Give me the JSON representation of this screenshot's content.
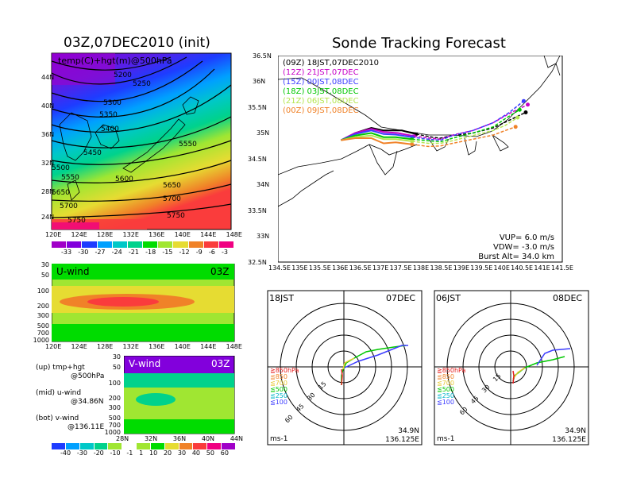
{
  "left_title": "03Z,07DEC2010 (init)",
  "right_title": "Sonde Tracking Forecast",
  "map_panel": {
    "label": "temp(C)+hgt(m)@500hPa",
    "x_ticks": [
      "120E",
      "124E",
      "128E",
      "132E",
      "136E",
      "140E",
      "144E",
      "148E"
    ],
    "y_ticks": [
      "44N",
      "40N",
      "36N",
      "32N",
      "28N",
      "24N"
    ],
    "contour_labels": [
      "5200",
      "5250",
      "5300",
      "5350",
      "5400",
      "5450",
      "5500",
      "5550",
      "5550",
      "5600",
      "5650",
      "5650",
      "5700",
      "5700",
      "5750",
      "5750"
    ]
  },
  "temp_colorbar": {
    "labels": [
      "-33",
      "-30",
      "-27",
      "-24",
      "-21",
      "-18",
      "-15",
      "-12",
      "-9",
      "-6",
      "-3"
    ],
    "colors": [
      "#a000c8",
      "#8200dc",
      "#1e3cff",
      "#00a0ff",
      "#00c8c8",
      "#00d28c",
      "#00dc00",
      "#a0e632",
      "#e6dc32",
      "#f08228",
      "#fa3c3c",
      "#f00082"
    ]
  },
  "uwind_panel": {
    "label": "U-wind",
    "time": "03Z",
    "y_ticks": [
      "30",
      "50",
      "100",
      "200",
      "300",
      "500",
      "700",
      "1000"
    ],
    "x_ticks": [
      "120E",
      "124E",
      "128E",
      "132E",
      "136E",
      "140E",
      "144E",
      "148E"
    ]
  },
  "vwind_panel": {
    "label": "V-wind",
    "time": "03Z",
    "y_ticks": [
      "30",
      "50",
      "100",
      "200",
      "300",
      "500",
      "700",
      "1000"
    ],
    "x_ticks": [
      "28N",
      "32N",
      "36N",
      "40N",
      "44N"
    ]
  },
  "wind_colorbar": {
    "labels": [
      "-40",
      "-30",
      "-20",
      "-10",
      "-1",
      "1",
      "10",
      "20",
      "30",
      "40",
      "50",
      "60"
    ],
    "colors": [
      "#1e3cff",
      "#00a0ff",
      "#00c8c8",
      "#00d28c",
      "#a0e632",
      "#ffffff",
      "#a0e632",
      "#00dc00",
      "#e6dc32",
      "#f08228",
      "#fa3c3c",
      "#f00082",
      "#a000c8"
    ]
  },
  "notes": [
    {
      "line1": "(up)  tmp+hgt",
      "line2": "@500hPa"
    },
    {
      "line1": "(mid)  u-wind",
      "line2": "@34.86N"
    },
    {
      "line1": "(bot)  v-wind",
      "line2": "@136.11E"
    }
  ],
  "tracking_panel": {
    "x_ticks": [
      "134.5E",
      "135E",
      "135.5E",
      "136E",
      "136.5E",
      "137E",
      "137.5E",
      "138E",
      "138.5E",
      "139E",
      "139.5E",
      "140E",
      "140.5E",
      "141E",
      "141.5E"
    ],
    "y_ticks": [
      "36.5N",
      "36N",
      "35.5N",
      "35N",
      "34.5N",
      "34N",
      "33.5N",
      "33N",
      "32.5N"
    ],
    "params": [
      "VUP=  6.0  m/s",
      "VDW= -3.0  m/s",
      "Burst Alt=  34.0  km"
    ]
  },
  "chart_data": {
    "type": "line",
    "title": "Sonde Tracking Forecast",
    "xlim": [
      134.5,
      141.5
    ],
    "ylim": [
      32.5,
      36.5
    ],
    "series": [
      {
        "name": "(09Z)  18JST,07DEC2010",
        "color": "#000000",
        "x": [
          136.05,
          136.4,
          136.8,
          137.1,
          137.55,
          137.9,
          138.3,
          138.5,
          138.8,
          139.3,
          139.8,
          140.2,
          140.6
        ],
        "y": [
          34.86,
          35.0,
          35.1,
          35.05,
          35.05,
          34.98,
          34.92,
          34.9,
          34.95,
          35.0,
          35.1,
          35.25,
          35.4
        ]
      },
      {
        "name": "(12Z)  21JST,07DEC",
        "color": "#c800c8",
        "x": [
          136.05,
          136.4,
          136.8,
          137.1,
          137.45,
          137.85,
          138.25,
          138.5,
          138.8,
          139.3,
          139.8,
          140.2,
          140.65
        ],
        "y": [
          34.86,
          35.0,
          35.08,
          35.02,
          35.0,
          34.94,
          34.9,
          34.88,
          34.96,
          35.05,
          35.2,
          35.38,
          35.55
        ]
      },
      {
        "name": "(15Z)  00JST,08DEC",
        "color": "#3c3cff",
        "x": [
          136.05,
          136.4,
          136.8,
          137.1,
          137.4,
          137.8,
          138.2,
          138.5,
          138.8,
          139.3,
          139.8,
          140.2,
          140.55
        ],
        "y": [
          34.86,
          34.98,
          35.05,
          34.98,
          34.97,
          34.92,
          34.88,
          34.86,
          34.95,
          35.05,
          35.2,
          35.4,
          35.62
        ]
      },
      {
        "name": "(18Z)  03JST,08DEC",
        "color": "#00c800",
        "x": [
          136.05,
          136.4,
          136.8,
          137.1,
          137.4,
          137.8,
          138.2,
          138.5,
          138.8,
          139.3,
          139.8,
          140.1,
          140.45
        ],
        "y": [
          34.86,
          34.95,
          35.0,
          34.92,
          34.92,
          34.88,
          34.85,
          34.83,
          34.9,
          35.0,
          35.12,
          35.28,
          35.45
        ]
      },
      {
        "name": "(21Z)  06JST,08DEC",
        "color": "#b4e650",
        "x": [
          136.05,
          136.4,
          136.8,
          137.1,
          137.4,
          137.8,
          138.2,
          138.5,
          138.8,
          139.3,
          139.8,
          140.1,
          140.4
        ],
        "y": [
          34.86,
          34.92,
          34.95,
          34.88,
          34.88,
          34.84,
          34.8,
          34.8,
          34.85,
          34.95,
          35.05,
          35.15,
          35.3
        ]
      },
      {
        "name": "(00Z)  09JST,08DEC",
        "color": "#f08228",
        "x": [
          136.05,
          136.4,
          136.8,
          137.1,
          137.4,
          137.8,
          138.2,
          138.5,
          138.8,
          139.3,
          139.8,
          140.1,
          140.35
        ],
        "y": [
          34.86,
          34.9,
          34.9,
          34.8,
          34.82,
          34.78,
          34.74,
          34.75,
          34.8,
          34.88,
          34.96,
          35.05,
          35.12
        ]
      }
    ]
  },
  "hodographs": [
    {
      "time": "18JST",
      "date": "07DEC",
      "lat": "34.9N",
      "lon": "136.125E",
      "unit": "ms-1",
      "ring_labels": [
        "15",
        "30",
        "45",
        "60"
      ],
      "levels": [
        {
          "name": "≧850hPa",
          "color": "#e61e1e"
        },
        {
          "name": "≦850",
          "color": "#f08228"
        },
        {
          "name": "≦700",
          "color": "#e6c832"
        },
        {
          "name": "≦500",
          "color": "#00c800"
        },
        {
          "name": "≦250",
          "color": "#00b4c8"
        },
        {
          "name": "≦100",
          "color": "#3c3cff"
        }
      ]
    },
    {
      "time": "06JST",
      "date": "08DEC",
      "lat": "34.9N",
      "lon": "136.125E",
      "unit": "ms-1",
      "ring_labels": [
        "15",
        "30",
        "45",
        "60"
      ],
      "levels": [
        {
          "name": "≧850hPa",
          "color": "#e61e1e"
        },
        {
          "name": "≦850",
          "color": "#f08228"
        },
        {
          "name": "≦700",
          "color": "#e6c832"
        },
        {
          "name": "≦500",
          "color": "#00c800"
        },
        {
          "name": "≦250",
          "color": "#00b4c8"
        },
        {
          "name": "≦100",
          "color": "#3c3cff"
        }
      ]
    }
  ]
}
